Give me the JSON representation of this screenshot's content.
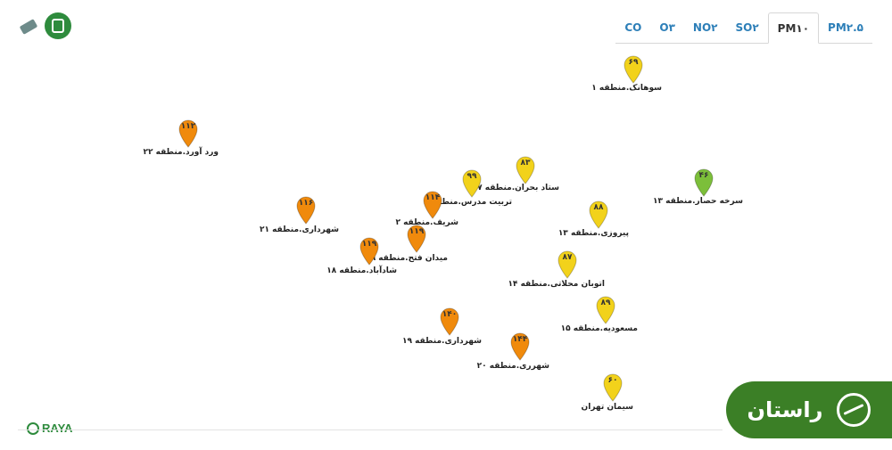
{
  "tabs": [
    {
      "label": "CO",
      "active": false
    },
    {
      "label": "O۳",
      "active": false
    },
    {
      "label": "NO۲",
      "active": false
    },
    {
      "label": "SO۲",
      "active": false
    },
    {
      "label": "PM۱۰",
      "active": true
    },
    {
      "label": "PM۲.۵",
      "active": false
    }
  ],
  "colors": {
    "good": "#7cbf3a",
    "moderate": "#f2d21b",
    "unhealthy_sensitive": "#f08a0c"
  },
  "stations": [
    {
      "value": "۶۹",
      "label": "سوهانک.منطقه ۱",
      "level": "moderate"
    },
    {
      "value": "۱۱۲",
      "label": "ورد آورد.منطقه ۲۲",
      "level": "unhealthy_sensitive"
    },
    {
      "value": "۸۳",
      "label": "ستاد بحران.منطقه ۷",
      "level": "moderate"
    },
    {
      "value": "۹۹",
      "label": "تربیت مدرس.منطقه ۶",
      "level": "moderate"
    },
    {
      "value": "۴۶",
      "label": "سرخه حصار.منطقه ۱۳",
      "level": "good"
    },
    {
      "value": "۱۱۴",
      "label": "شریف.منطقه ۲",
      "level": "unhealthy_sensitive"
    },
    {
      "value": "۱۱۶",
      "label": "شهرداری.منطقه ۲۱",
      "level": "unhealthy_sensitive"
    },
    {
      "value": "۸۸",
      "label": "پیروزی.منطقه ۱۳",
      "level": "moderate"
    },
    {
      "value": "۱۱۹",
      "label": "میدان فتح.منطقه ۹",
      "level": "unhealthy_sensitive"
    },
    {
      "value": "۱۱۹",
      "label": "شادآباد.منطقه ۱۸",
      "level": "unhealthy_sensitive"
    },
    {
      "value": "۸۷",
      "label": "اتوبان محلاتی.منطقه ۱۴",
      "level": "moderate"
    },
    {
      "value": "۸۹",
      "label": "مسعودیه.منطقه ۱۵",
      "level": "moderate"
    },
    {
      "value": "۱۴۰",
      "label": "شهرداری.منطقه ۱۹",
      "level": "unhealthy_sensitive"
    },
    {
      "value": "۱۴۴",
      "label": "شهرری.منطقه ۲۰",
      "level": "unhealthy_sensitive"
    },
    {
      "value": "۶۰",
      "label": "سیمان تهران",
      "level": "moderate"
    }
  ],
  "footer": {
    "brand": "RAYA"
  },
  "badge": {
    "text": "راستان"
  }
}
